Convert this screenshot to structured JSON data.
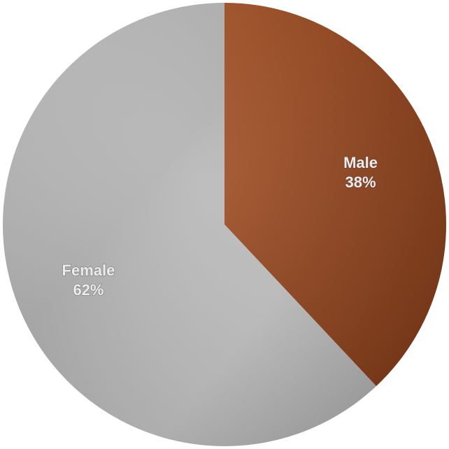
{
  "chart_data": {
    "type": "pie",
    "slices": [
      {
        "label": "Male",
        "value": 38,
        "value_label": "38%",
        "color": "#9a4a22"
      },
      {
        "label": "Female",
        "value": 62,
        "value_label": "62%",
        "color": "#bdbdbd"
      }
    ],
    "start_angle_deg": 0,
    "direction": "clockwise",
    "legend": "none",
    "title": ""
  }
}
